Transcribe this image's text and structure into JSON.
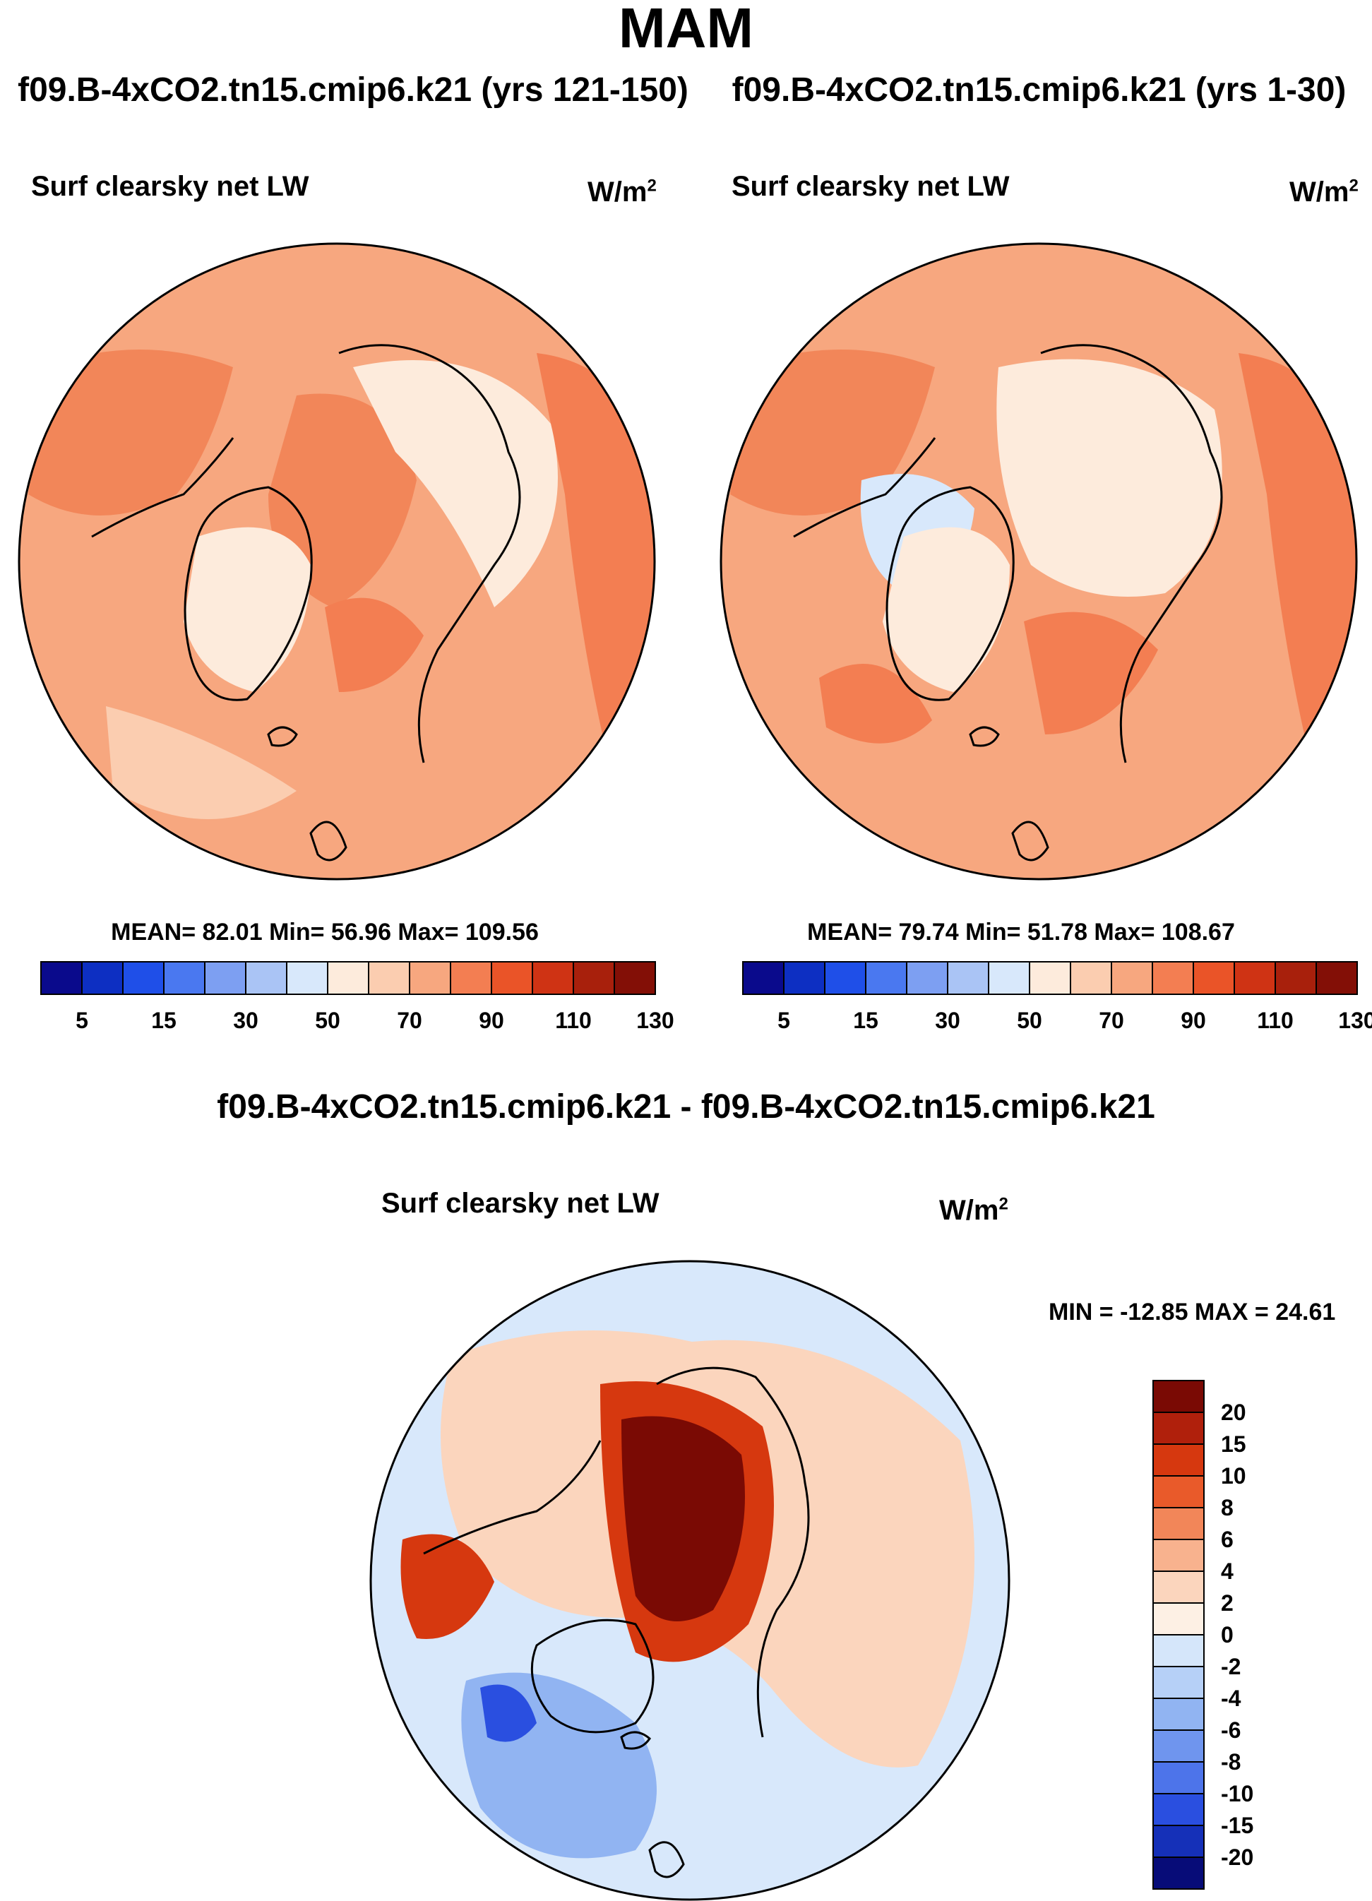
{
  "page": {
    "title": "MAM"
  },
  "panels": [
    {
      "title": "f09.B-4xCO2.tn15.cmip6.k21 (yrs 121-150)",
      "variable": "Surf clearsky net LW",
      "units": "W/m",
      "units_sup": "2",
      "stats": "MEAN=  82.01  Min=  56.96  Max= 109.56"
    },
    {
      "title": "f09.B-4xCO2.tn15.cmip6.k21 (yrs 1-30)",
      "variable": "Surf clearsky net LW",
      "units": "W/m",
      "units_sup": "2",
      "stats": "MEAN=  79.74  Min=  51.78  Max= 108.67"
    },
    {
      "title": "f09.B-4xCO2.tn15.cmip6.k21 - f09.B-4xCO2.tn15.cmip6.k21",
      "variable": "Surf clearsky net LW",
      "units": "W/m",
      "units_sup": "2",
      "stats": "MIN = -12.85 MAX =  24.61"
    }
  ],
  "chart_data": [
    {
      "type": "heatmap",
      "projection": "north-polar-stereographic",
      "title": "f09.B-4xCO2.tn15.cmip6.k21 (yrs 121-150)",
      "variable": "Surf clearsky net LW",
      "units": "W/m2",
      "mean": 82.01,
      "min": 56.96,
      "max": 109.56,
      "colorbar": {
        "orientation": "horizontal",
        "levels": [
          5,
          10,
          15,
          20,
          30,
          40,
          50,
          60,
          70,
          80,
          90,
          100,
          110,
          120,
          130
        ],
        "tick_labels": [
          "5",
          "15",
          "30",
          "50",
          "70",
          "90",
          "110",
          "130"
        ],
        "colors": [
          "#0a0a8c",
          "#0d2fc2",
          "#1f4fe8",
          "#4a78f0",
          "#7d9ff2",
          "#aac4f5",
          "#d8e8fb",
          "#fdebdc",
          "#fbcdb0",
          "#f7a77f",
          "#f37e52",
          "#ea5428",
          "#cf3314",
          "#a8200c",
          "#830f06"
        ]
      }
    },
    {
      "type": "heatmap",
      "projection": "north-polar-stereographic",
      "title": "f09.B-4xCO2.tn15.cmip6.k21 (yrs 1-30)",
      "variable": "Surf clearsky net LW",
      "units": "W/m2",
      "mean": 79.74,
      "min": 51.78,
      "max": 108.67,
      "colorbar": {
        "orientation": "horizontal",
        "levels": [
          5,
          10,
          15,
          20,
          30,
          40,
          50,
          60,
          70,
          80,
          90,
          100,
          110,
          120,
          130
        ],
        "tick_labels": [
          "5",
          "15",
          "30",
          "50",
          "70",
          "90",
          "110",
          "130"
        ],
        "colors": [
          "#0a0a8c",
          "#0d2fc2",
          "#1f4fe8",
          "#4a78f0",
          "#7d9ff2",
          "#aac4f5",
          "#d8e8fb",
          "#fdebdc",
          "#fbcdb0",
          "#f7a77f",
          "#f37e52",
          "#ea5428",
          "#cf3314",
          "#a8200c",
          "#830f06"
        ]
      }
    },
    {
      "type": "heatmap",
      "projection": "north-polar-stereographic",
      "title": "f09.B-4xCO2.tn15.cmip6.k21 - f09.B-4xCO2.tn15.cmip6.k21",
      "variable": "Surf clearsky net LW",
      "units": "W/m2",
      "min": -12.85,
      "max": 24.61,
      "colorbar": {
        "orientation": "vertical",
        "levels": [
          20,
          15,
          10,
          8,
          6,
          4,
          2,
          0,
          -2,
          -4,
          -6,
          -8,
          -10,
          -15,
          -20
        ],
        "tick_labels": [
          "20",
          "15",
          "10",
          "8",
          "6",
          "4",
          "2",
          "0",
          "-2",
          "-4",
          "-6",
          "-8",
          "-10",
          "-15",
          "-20"
        ],
        "colors": [
          "#7a0a04",
          "#b0200c",
          "#d6380f",
          "#e95a2a",
          "#f28659",
          "#f8b28e",
          "#fbd5bd",
          "#fdf0e4",
          "#d5e6fa",
          "#b6d0f7",
          "#91b4f2",
          "#6f95ee",
          "#4d74ea",
          "#2a4fe0",
          "#1530b8",
          "#070c78"
        ]
      }
    }
  ]
}
